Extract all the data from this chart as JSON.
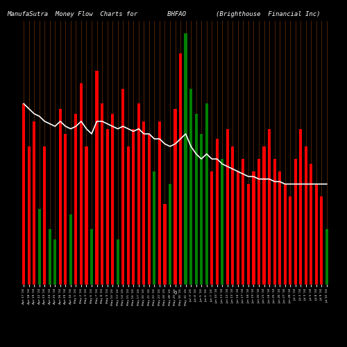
{
  "title": "ManufaSutra  Money Flow  Charts for        BHFAO        (Brighthouse  Financial Inc)",
  "background_color": "#000000",
  "bar_colors": [
    "red",
    "red",
    "red",
    "green",
    "red",
    "green",
    "green",
    "red",
    "red",
    "green",
    "red",
    "red",
    "red",
    "green",
    "red",
    "red",
    "red",
    "red",
    "green",
    "red",
    "red",
    "red",
    "red",
    "red",
    "red",
    "green",
    "red",
    "red",
    "green",
    "red",
    "red",
    "green",
    "green",
    "green",
    "green",
    "green",
    "red",
    "red",
    "green",
    "red",
    "red",
    "red",
    "red",
    "red",
    "red",
    "red",
    "red",
    "red",
    "red",
    "red",
    "red",
    "red",
    "red",
    "red",
    "red",
    "red",
    "red",
    "red",
    "green"
  ],
  "bar_heights": [
    0.72,
    0.55,
    0.65,
    0.3,
    0.55,
    0.22,
    0.18,
    0.7,
    0.6,
    0.28,
    0.68,
    0.8,
    0.55,
    0.22,
    0.85,
    0.72,
    0.62,
    0.68,
    0.18,
    0.78,
    0.55,
    0.62,
    0.72,
    0.65,
    0.6,
    0.45,
    0.65,
    0.32,
    0.4,
    0.7,
    0.92,
    1.0,
    0.78,
    0.68,
    0.6,
    0.72,
    0.45,
    0.58,
    0.5,
    0.62,
    0.55,
    0.45,
    0.5,
    0.4,
    0.45,
    0.5,
    0.55,
    0.62,
    0.5,
    0.45,
    0.4,
    0.35,
    0.5,
    0.62,
    0.55,
    0.48,
    0.4,
    0.35,
    0.22
  ],
  "line_values": [
    0.72,
    0.7,
    0.68,
    0.67,
    0.65,
    0.64,
    0.63,
    0.65,
    0.63,
    0.62,
    0.63,
    0.65,
    0.62,
    0.6,
    0.65,
    0.65,
    0.64,
    0.63,
    0.62,
    0.63,
    0.62,
    0.61,
    0.62,
    0.6,
    0.6,
    0.58,
    0.58,
    0.56,
    0.55,
    0.56,
    0.58,
    0.6,
    0.55,
    0.52,
    0.5,
    0.52,
    0.5,
    0.5,
    0.48,
    0.47,
    0.46,
    0.45,
    0.44,
    0.43,
    0.43,
    0.42,
    0.42,
    0.42,
    0.41,
    0.41,
    0.4,
    0.4,
    0.4,
    0.4,
    0.4,
    0.4,
    0.4,
    0.4,
    0.4
  ],
  "x_labels": [
    "Apr 17 '24",
    "Apr 18 '24",
    "Apr 19 '24",
    "Apr 22 '24",
    "Apr 23 '24",
    "Apr 24 '24",
    "Apr 25 '24",
    "Apr 26 '24",
    "Apr 29 '24",
    "Apr 30 '24",
    "May 1 '24",
    "May 2 '24",
    "May 3 '24",
    "May 6 '24",
    "May 7 '24",
    "May 8 '24",
    "May 9 '24",
    "May 10 '24",
    "May 13 '24",
    "May 14 '24",
    "May 15 '24",
    "May 16 '24",
    "May 17 '24",
    "May 20 '24",
    "May 21 '24",
    "May 22 '24",
    "May 23 '24",
    "May 24 '24",
    "May 28 '24",
    "May 29 '24",
    "May 30 '24",
    "May 31 '24",
    "Jun 3 '24",
    "Jun 4 '24",
    "Jun 5 '24",
    "Jun 6 '24",
    "Jun 7 '24",
    "Jun 10 '24",
    "Jun 11 '24",
    "Jun 12 '24",
    "Jun 13 '24",
    "Jun 14 '24",
    "Jun 17 '24",
    "Jun 18 '24",
    "Jun 19 '24",
    "Jun 20 '24",
    "Jun 21 '24",
    "Jun 24 '24",
    "Jun 25 '24",
    "Jun 26 '24",
    "Jun 27 '24",
    "Jun 28 '24",
    "Jul 1 '24",
    "Jul 2 '24",
    "Jul 3 '24",
    "Jul 5 '24",
    "Jul 8 '24",
    "Jul 9 '24",
    "Jul 10 '24"
  ],
  "title_color": "#ffffff",
  "title_fontsize": 6.5,
  "orange_vline_color": "#cc5500",
  "ylim": [
    0,
    1.05
  ]
}
